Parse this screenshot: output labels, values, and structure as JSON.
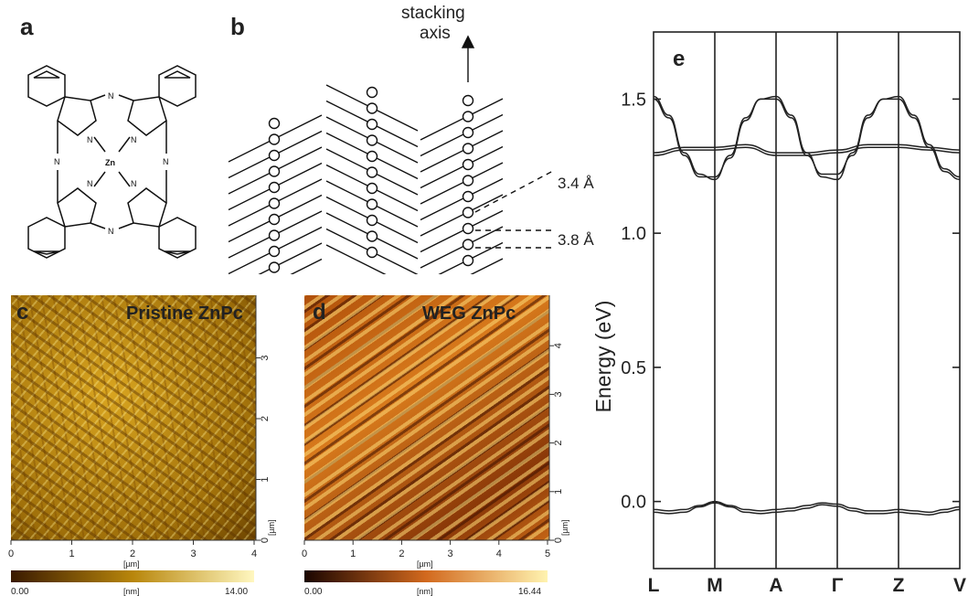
{
  "panels": {
    "a": {
      "letter": "a",
      "center_atom": "Zn",
      "nitrogen_label": "N"
    },
    "b": {
      "letter": "b",
      "axis_label_line1": "stacking",
      "axis_label_line2": "axis",
      "spacing_1": "3.4 Å",
      "spacing_2": "3.8 Å",
      "column_circle_count": 11
    },
    "c": {
      "letter": "c",
      "title": "Pristine ZnPc",
      "x_ticks": [
        "0",
        "1",
        "2",
        "3",
        "4"
      ],
      "x_unit": "[µm]",
      "y_ticks": [
        "0",
        "1",
        "2",
        "3"
      ],
      "y_unit": "[µm]",
      "colorbar_min": "0.00",
      "colorbar_unit": "[nm]",
      "colorbar_max": "14.00",
      "colors": {
        "dark": "#3a1a00",
        "mid": "#b8860b",
        "light": "#fff7c0"
      }
    },
    "d": {
      "letter": "d",
      "title": "WEG ZnPc",
      "x_ticks": [
        "0",
        "1",
        "2",
        "3",
        "4",
        "5"
      ],
      "x_unit": "[µm]",
      "y_ticks": [
        "0",
        "1",
        "2",
        "3",
        "4"
      ],
      "y_unit": "[µm]",
      "colorbar_min": "0.00",
      "colorbar_unit": "[nm]",
      "colorbar_max": "16.44",
      "colors": {
        "dark": "#1a0500",
        "mid": "#d2691e",
        "light": "#fff3b0"
      }
    },
    "e": {
      "letter": "e"
    }
  },
  "chart_data": {
    "type": "line",
    "title": "",
    "xlabel": "",
    "ylabel": "Energy (eV)",
    "x_categories": [
      "L",
      "M",
      "A",
      "Γ",
      "Z",
      "V"
    ],
    "yticks": [
      "0.0",
      "0.5",
      "1.0",
      "1.5"
    ],
    "ylim": [
      -0.25,
      1.75
    ],
    "grid": "vertical lines at high-symmetry points",
    "series": [
      {
        "x": [
          0,
          0.25,
          0.5,
          0.75,
          1,
          1.25,
          1.5,
          1.75,
          2,
          2.25,
          2.5,
          2.75,
          3,
          3.25,
          3.5,
          3.75,
          4,
          4.25,
          4.5,
          4.75,
          5
        ],
        "y": [
          1.51,
          1.44,
          1.3,
          1.22,
          1.2,
          1.29,
          1.43,
          1.5,
          1.51,
          1.44,
          1.3,
          1.21,
          1.2,
          1.3,
          1.44,
          1.5,
          1.51,
          1.44,
          1.33,
          1.24,
          1.21
        ]
      },
      {
        "x": [
          0,
          0.25,
          0.5,
          0.75,
          1,
          1.25,
          1.5,
          1.75,
          2,
          2.25,
          2.5,
          2.75,
          3,
          3.25,
          3.5,
          3.75,
          4,
          4.25,
          4.5,
          4.75,
          5
        ],
        "y": [
          1.5,
          1.43,
          1.29,
          1.21,
          1.21,
          1.28,
          1.42,
          1.5,
          1.5,
          1.43,
          1.29,
          1.22,
          1.22,
          1.29,
          1.43,
          1.5,
          1.5,
          1.43,
          1.32,
          1.23,
          1.2
        ]
      },
      {
        "x": [
          0,
          0.5,
          1,
          1.5,
          2,
          2.5,
          3,
          3.5,
          4,
          4.5,
          5
        ],
        "y": [
          1.3,
          1.32,
          1.32,
          1.33,
          1.3,
          1.3,
          1.31,
          1.33,
          1.33,
          1.32,
          1.31
        ]
      },
      {
        "x": [
          0,
          0.5,
          1,
          1.5,
          2,
          2.5,
          3,
          3.5,
          4,
          4.5,
          5
        ],
        "y": [
          1.29,
          1.31,
          1.31,
          1.32,
          1.29,
          1.29,
          1.3,
          1.32,
          1.32,
          1.31,
          1.3
        ]
      },
      {
        "x": [
          0,
          0.25,
          0.5,
          0.75,
          1,
          1.25,
          1.5,
          1.75,
          2,
          2.25,
          2.5,
          2.75,
          3,
          3.25,
          3.5,
          3.75,
          4,
          4.25,
          4.5,
          4.75,
          5
        ],
        "y": [
          -0.03,
          -0.035,
          -0.03,
          -0.015,
          0.0,
          -0.015,
          -0.03,
          -0.035,
          -0.03,
          -0.025,
          -0.015,
          -0.005,
          -0.01,
          -0.025,
          -0.035,
          -0.035,
          -0.03,
          -0.035,
          -0.04,
          -0.03,
          -0.02
        ]
      },
      {
        "x": [
          0,
          0.25,
          0.5,
          0.75,
          1,
          1.25,
          1.5,
          1.75,
          2,
          2.25,
          2.5,
          2.75,
          3,
          3.25,
          3.5,
          3.75,
          4,
          4.25,
          4.5,
          4.75,
          5
        ],
        "y": [
          -0.04,
          -0.045,
          -0.04,
          -0.02,
          -0.005,
          -0.02,
          -0.04,
          -0.045,
          -0.04,
          -0.035,
          -0.025,
          -0.012,
          -0.018,
          -0.035,
          -0.045,
          -0.045,
          -0.04,
          -0.045,
          -0.05,
          -0.04,
          -0.03
        ]
      }
    ]
  }
}
